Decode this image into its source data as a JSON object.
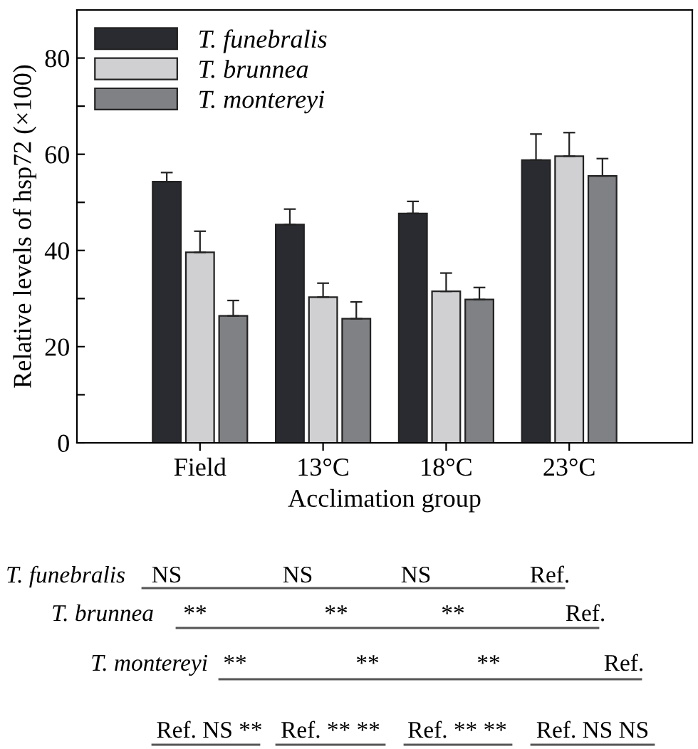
{
  "chart_data": {
    "type": "bar",
    "xlabel": "Acclimation group",
    "ylabel": "Relative levels of hsp72 (×100)",
    "categories": [
      "Field",
      "13°C",
      "18°C",
      "23°C"
    ],
    "series": [
      {
        "name": "T. funebralis",
        "color": "#2a2b30",
        "values": [
          54.3,
          45.4,
          47.7,
          58.8
        ],
        "errors": [
          [
            54.3,
            56.2
          ],
          [
            45.4,
            48.6
          ],
          [
            47.7,
            50.2
          ],
          [
            58.8,
            64.2
          ]
        ]
      },
      {
        "name": "T. brunnea",
        "color": "#d0d0d2",
        "values": [
          39.6,
          30.3,
          31.5,
          59.6
        ],
        "errors": [
          [
            39.6,
            44.0
          ],
          [
            30.3,
            33.2
          ],
          [
            31.5,
            35.3
          ],
          [
            59.6,
            64.5
          ]
        ]
      },
      {
        "name": "T. montereyi",
        "color": "#808184",
        "values": [
          26.4,
          25.8,
          29.8,
          55.5
        ],
        "errors": [
          [
            26.4,
            29.6
          ],
          [
            25.8,
            29.3
          ],
          [
            29.8,
            32.3
          ],
          [
            55.5,
            59.1
          ]
        ]
      }
    ],
    "ylim": [
      0,
      90
    ],
    "yticks": [
      0,
      {
        "value": 10,
        "label": null
      },
      20,
      {
        "value": 30,
        "label": null
      },
      40,
      {
        "value": 50,
        "label": null
      },
      60,
      {
        "value": 70,
        "label": null
      },
      80
    ],
    "legend": "top left",
    "grid": false,
    "annotations": [
      "T. funebralis",
      "NS",
      "NS",
      "NS",
      "Ref.",
      "T. brunnea",
      "**",
      "**",
      "**",
      "Ref.",
      "T. montereyi",
      "**",
      "**",
      "**",
      "Ref.",
      "Ref. NS **",
      "Ref. ** **",
      "Ref. ** **",
      "Ref. NS NS"
    ]
  }
}
